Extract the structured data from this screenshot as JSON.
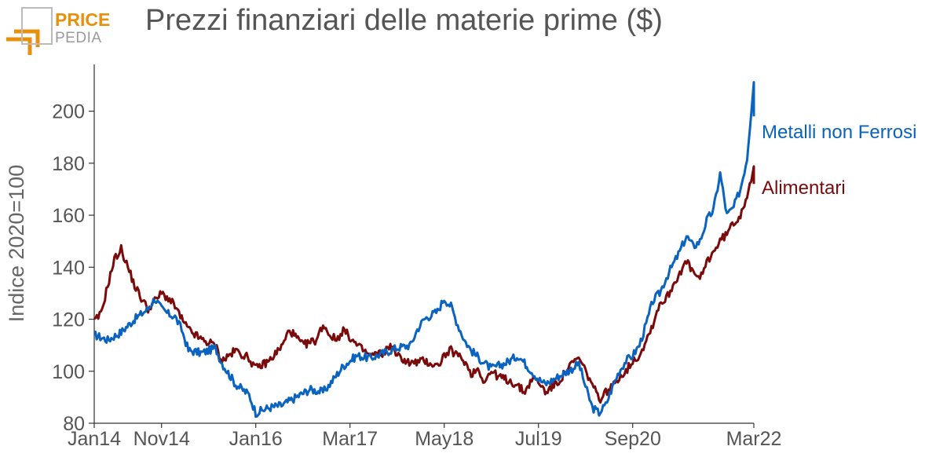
{
  "logo": {
    "word1": "PRICE",
    "word2": "PEDIA"
  },
  "colors": {
    "metalli": "#0a63be",
    "alimentari": "#7b0a0a",
    "logo": "#e8900c",
    "text": "#555555"
  },
  "chart_data": {
    "type": "line",
    "title": "Prezzi finanziari delle materie prime ($)",
    "xlabel": "",
    "ylabel": "Indice 2020=100",
    "ylim": [
      80,
      218
    ],
    "yticks": [
      80,
      100,
      120,
      140,
      160,
      180,
      200
    ],
    "xlim": [
      "2014-01",
      "2022-03"
    ],
    "xticks": [
      "Jan14",
      "Nov14",
      "Jan16",
      "Mar17",
      "May18",
      "Jul19",
      "Sep20",
      "Mar22"
    ],
    "grid": false,
    "legend": "inline-right",
    "series": [
      {
        "name": "Metalli non Ferrosi",
        "color": "#0a63be",
        "points": [
          [
            "2014-01",
            114
          ],
          [
            "2014-03",
            112
          ],
          [
            "2014-05",
            115
          ],
          [
            "2014-07",
            120
          ],
          [
            "2014-09",
            124
          ],
          [
            "2014-10",
            128
          ],
          [
            "2014-11",
            124
          ],
          [
            "2014-12",
            122
          ],
          [
            "2015-01",
            121
          ],
          [
            "2015-02",
            116
          ],
          [
            "2015-03",
            108
          ],
          [
            "2015-05",
            107
          ],
          [
            "2015-07",
            109
          ],
          [
            "2015-08",
            103
          ],
          [
            "2015-10",
            95
          ],
          [
            "2015-12",
            91
          ],
          [
            "2016-01",
            84
          ],
          [
            "2016-03",
            86
          ],
          [
            "2016-05",
            87
          ],
          [
            "2016-07",
            90
          ],
          [
            "2016-09",
            93
          ],
          [
            "2016-11",
            92
          ],
          [
            "2016-12",
            95
          ],
          [
            "2017-02",
            102
          ],
          [
            "2017-04",
            106
          ],
          [
            "2017-06",
            105
          ],
          [
            "2017-08",
            107
          ],
          [
            "2017-10",
            109
          ],
          [
            "2017-12",
            110
          ],
          [
            "2018-01",
            116
          ],
          [
            "2018-02",
            120
          ],
          [
            "2018-04",
            123
          ],
          [
            "2018-05",
            128
          ],
          [
            "2018-06",
            125
          ],
          [
            "2018-07",
            118
          ],
          [
            "2018-08",
            112
          ],
          [
            "2018-09",
            108
          ],
          [
            "2018-11",
            103
          ],
          [
            "2018-12",
            101
          ],
          [
            "2019-02",
            103
          ],
          [
            "2019-04",
            106
          ],
          [
            "2019-06",
            100
          ],
          [
            "2019-07",
            97
          ],
          [
            "2019-08",
            95
          ],
          [
            "2019-10",
            98
          ],
          [
            "2019-12",
            101
          ],
          [
            "2020-01",
            103
          ],
          [
            "2020-02",
            94
          ],
          [
            "2020-03",
            86
          ],
          [
            "2020-04",
            84
          ],
          [
            "2020-05",
            87
          ],
          [
            "2020-06",
            94
          ],
          [
            "2020-07",
            100
          ],
          [
            "2020-08",
            104
          ],
          [
            "2020-09",
            106
          ],
          [
            "2020-10",
            110
          ],
          [
            "2020-11",
            118
          ],
          [
            "2020-12",
            127
          ],
          [
            "2021-01",
            130
          ],
          [
            "2021-02",
            136
          ],
          [
            "2021-03",
            141
          ],
          [
            "2021-04",
            146
          ],
          [
            "2021-05",
            152
          ],
          [
            "2021-06",
            148
          ],
          [
            "2021-07",
            150
          ],
          [
            "2021-08",
            158
          ],
          [
            "2021-09",
            162
          ],
          [
            "2021-10",
            176
          ],
          [
            "2021-11",
            160
          ],
          [
            "2021-12",
            163
          ],
          [
            "2022-01",
            170
          ],
          [
            "2022-02",
            182
          ],
          [
            "2022-03",
            212
          ],
          [
            "2022-03",
            198
          ]
        ]
      },
      {
        "name": "Alimentari",
        "color": "#7b0a0a",
        "points": [
          [
            "2014-01",
            119
          ],
          [
            "2014-02",
            122
          ],
          [
            "2014-03",
            133
          ],
          [
            "2014-04",
            143
          ],
          [
            "2014-05",
            147
          ],
          [
            "2014-06",
            140
          ],
          [
            "2014-07",
            133
          ],
          [
            "2014-08",
            128
          ],
          [
            "2014-09",
            124
          ],
          [
            "2014-10",
            127
          ],
          [
            "2014-11",
            130
          ],
          [
            "2014-12",
            128
          ],
          [
            "2015-01",
            125
          ],
          [
            "2015-02",
            120
          ],
          [
            "2015-03",
            116
          ],
          [
            "2015-05",
            112
          ],
          [
            "2015-07",
            110
          ],
          [
            "2015-08",
            104
          ],
          [
            "2015-10",
            108
          ],
          [
            "2015-12",
            105
          ],
          [
            "2016-01",
            101
          ],
          [
            "2016-03",
            104
          ],
          [
            "2016-05",
            110
          ],
          [
            "2016-06",
            116
          ],
          [
            "2016-08",
            110
          ],
          [
            "2016-10",
            112
          ],
          [
            "2016-11",
            118
          ],
          [
            "2016-12",
            114
          ],
          [
            "2017-01",
            112
          ],
          [
            "2017-02",
            116
          ],
          [
            "2017-04",
            110
          ],
          [
            "2017-06",
            106
          ],
          [
            "2017-08",
            107
          ],
          [
            "2017-09",
            110
          ],
          [
            "2017-10",
            106
          ],
          [
            "2017-12",
            103
          ],
          [
            "2018-02",
            104
          ],
          [
            "2018-04",
            102
          ],
          [
            "2018-05",
            106
          ],
          [
            "2018-06",
            108
          ],
          [
            "2018-08",
            104
          ],
          [
            "2018-09",
            99
          ],
          [
            "2018-10",
            101
          ],
          [
            "2018-11",
            96
          ],
          [
            "2018-12",
            100
          ],
          [
            "2019-01",
            98
          ],
          [
            "2019-03",
            96
          ],
          [
            "2019-05",
            92
          ],
          [
            "2019-06",
            97
          ],
          [
            "2019-07",
            96
          ],
          [
            "2019-08",
            92
          ],
          [
            "2019-10",
            96
          ],
          [
            "2019-12",
            103
          ],
          [
            "2020-01",
            105
          ],
          [
            "2020-02",
            100
          ],
          [
            "2020-03",
            95
          ],
          [
            "2020-04",
            89
          ],
          [
            "2020-05",
            92
          ],
          [
            "2020-06",
            94
          ],
          [
            "2020-07",
            98
          ],
          [
            "2020-08",
            100
          ],
          [
            "2020-09",
            104
          ],
          [
            "2020-10",
            106
          ],
          [
            "2020-11",
            112
          ],
          [
            "2020-12",
            118
          ],
          [
            "2021-01",
            126
          ],
          [
            "2021-02",
            128
          ],
          [
            "2021-03",
            133
          ],
          [
            "2021-04",
            138
          ],
          [
            "2021-05",
            142
          ],
          [
            "2021-06",
            138
          ],
          [
            "2021-07",
            135
          ],
          [
            "2021-08",
            142
          ],
          [
            "2021-09",
            146
          ],
          [
            "2021-10",
            150
          ],
          [
            "2021-11",
            153
          ],
          [
            "2021-12",
            157
          ],
          [
            "2022-01",
            160
          ],
          [
            "2022-02",
            168
          ],
          [
            "2022-03",
            178
          ],
          [
            "2022-03",
            172
          ]
        ]
      }
    ]
  }
}
